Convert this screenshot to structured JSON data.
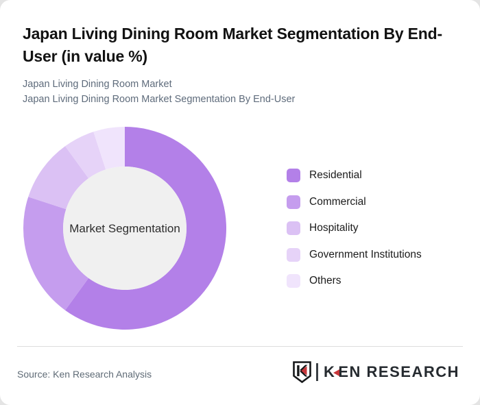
{
  "header": {
    "title": "Japan Living Dining Room Market Segmentation By End-User (in value %)",
    "subtitle_line1": "Japan Living Dining Room Market",
    "subtitle_line2": "Japan Living Dining Room Market Segmentation By End-User"
  },
  "chart_data": {
    "type": "pie",
    "subtype": "donut",
    "title": "Japan Living Dining Room Market Segmentation By End-User (in value %)",
    "center_label": "Market Segmentation",
    "unit": "value %",
    "categories": [
      "Residential",
      "Commercial",
      "Hospitality",
      "Government Institutions",
      "Others"
    ],
    "values": [
      60,
      20,
      10,
      5,
      5
    ],
    "colors": [
      "#b380e8",
      "#c59dee",
      "#dbc1f4",
      "#e6d3f8",
      "#f0e4fc"
    ],
    "start_angle_deg": 0,
    "direction": "clockwise",
    "hole_radius_ratio": 0.608,
    "hole_color": "#f0f0f0",
    "legend_position": "right"
  },
  "footer": {
    "source": "Source: Ken Research Analysis",
    "logo": {
      "shield_letter": "K",
      "word_k": "K",
      "word_rest": "EN RESEARCH",
      "accent_color": "#c8373b",
      "text_color": "#262b30"
    }
  }
}
